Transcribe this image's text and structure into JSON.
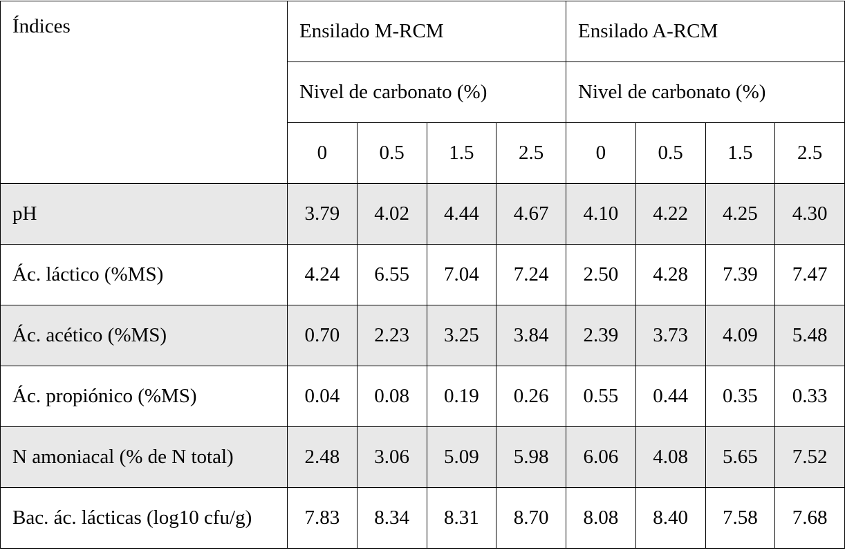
{
  "header": {
    "index_label": "Índices",
    "group1_title": "Ensilado M-RCM",
    "group2_title": "Ensilado A-RCM",
    "group1_sub": "Nivel de carbonato (%)",
    "group2_sub": "Nivel de carbonato (%)",
    "levels1": [
      "0",
      "0.5",
      "1.5",
      "2.5"
    ],
    "levels2": [
      "0",
      "0.5",
      "1.5",
      "2.5"
    ]
  },
  "rows": [
    {
      "label": "pH",
      "values": [
        "3.79",
        "4.02",
        "4.44",
        "4.67",
        "4.10",
        "4.22",
        "4.25",
        "4.30"
      ]
    },
    {
      "label": "Ác. láctico (%MS)",
      "values": [
        "4.24",
        "6.55",
        "7.04",
        "7.24",
        "2.50",
        "4.28",
        "7.39",
        "7.47"
      ]
    },
    {
      "label": "Ác. acético (%MS)",
      "values": [
        "0.70",
        "2.23",
        "3.25",
        "3.84",
        "2.39",
        "3.73",
        "4.09",
        "5.48"
      ]
    },
    {
      "label": "Ác. propiónico (%MS)",
      "values": [
        "0.04",
        "0.08",
        "0.19",
        "0.26",
        "0.55",
        "0.44",
        "0.35",
        "0.33"
      ]
    },
    {
      "label": "N amoniacal (% de N total)",
      "values": [
        "2.48",
        "3.06",
        "5.09",
        "5.98",
        "6.06",
        "4.08",
        "5.65",
        "7.52"
      ]
    },
    {
      "label": "Bac. ác. lácticas (log10 cfu/g)",
      "values": [
        "7.83",
        "8.34",
        "8.31",
        "8.70",
        "8.08",
        "8.40",
        "7.58",
        "7.68"
      ]
    }
  ],
  "colors": {
    "shaded_row": "#e8e8e8",
    "border": "#000000"
  }
}
